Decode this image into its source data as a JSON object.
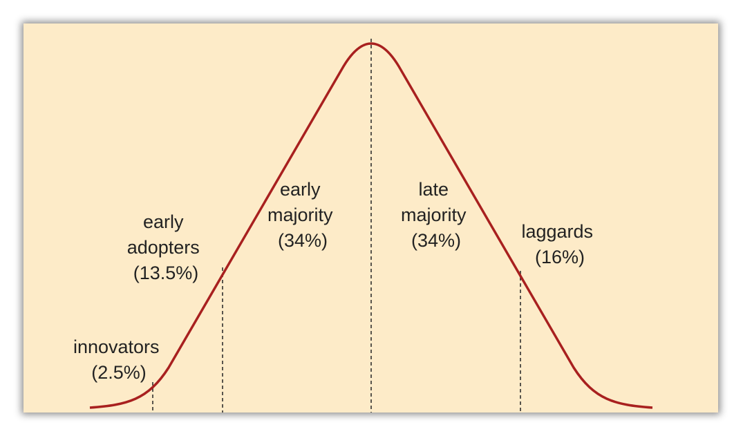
{
  "colors": {
    "background": "#fdebc8",
    "curve": "#a8201f",
    "divider": "#222222",
    "text": "#222222"
  },
  "segments": [
    {
      "label_lines": [
        "innovators"
      ],
      "percent": "(2.5%)",
      "share": 2.5
    },
    {
      "label_lines": [
        "early",
        "adopters"
      ],
      "percent": "(13.5%)",
      "share": 13.5
    },
    {
      "label_lines": [
        "early",
        "majority"
      ],
      "percent": "(34%)",
      "share": 34
    },
    {
      "label_lines": [
        "late",
        "majority"
      ],
      "percent": "(34%)",
      "share": 34
    },
    {
      "label_lines": [
        "laggards"
      ],
      "percent": "(16%)",
      "share": 16
    }
  ]
}
